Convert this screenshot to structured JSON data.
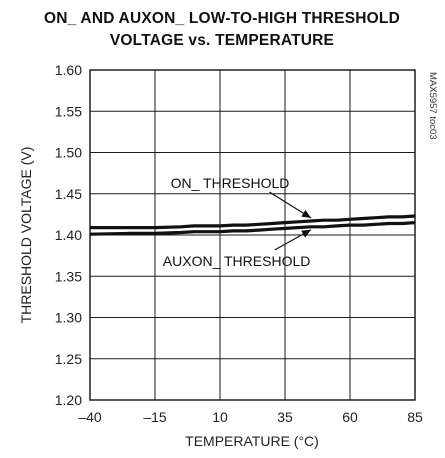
{
  "chart_data": {
    "type": "line",
    "title": [
      "ON_ AND AUXON_ LOW-TO-HIGH THRESHOLD",
      "VOLTAGE vs. TEMPERATURE"
    ],
    "xlabel": "TEMPERATURE (°C)",
    "ylabel": "THRESHOLD VOLTAGE (V)",
    "xlim": [
      -40,
      85
    ],
    "ylim": [
      1.2,
      1.6
    ],
    "xticks": [
      -40,
      -15,
      10,
      35,
      60,
      85
    ],
    "xtick_labels": [
      "-40",
      "-15",
      "10",
      "35",
      "60",
      "85"
    ],
    "yticks": [
      1.2,
      1.25,
      1.3,
      1.35,
      1.4,
      1.45,
      1.5,
      1.55,
      1.6
    ],
    "ytick_labels": [
      "1.20",
      "1.25",
      "1.30",
      "1.35",
      "1.40",
      "1.45",
      "1.50",
      "1.55",
      "1.60"
    ],
    "grid": true,
    "series": [
      {
        "name": "ON_ THRESHOLD",
        "x": [
          -40,
          -25,
          -15,
          -5,
          0,
          10,
          15,
          20,
          25,
          30,
          35,
          40,
          45,
          50,
          55,
          60,
          65,
          70,
          75,
          80,
          85
        ],
        "y": [
          1.409,
          1.409,
          1.409,
          1.41,
          1.411,
          1.411,
          1.412,
          1.412,
          1.413,
          1.414,
          1.415,
          1.416,
          1.417,
          1.418,
          1.418,
          1.419,
          1.42,
          1.421,
          1.422,
          1.422,
          1.423
        ]
      },
      {
        "name": "AUXON_ THRESHOLD",
        "x": [
          -40,
          -25,
          -15,
          -5,
          0,
          10,
          15,
          20,
          25,
          30,
          35,
          40,
          45,
          50,
          55,
          60,
          65,
          70,
          75,
          80,
          85
        ],
        "y": [
          1.401,
          1.402,
          1.402,
          1.403,
          1.404,
          1.404,
          1.405,
          1.405,
          1.406,
          1.407,
          1.408,
          1.409,
          1.41,
          1.41,
          1.411,
          1.412,
          1.412,
          1.413,
          1.414,
          1.414,
          1.415
        ]
      }
    ],
    "annotations": [
      {
        "text": "ON_ THRESHOLD",
        "series": 0,
        "point_x": 45
      },
      {
        "text": "AUXON_ THRESHOLD",
        "series": 1,
        "point_x": 45
      }
    ],
    "tag": "MAX5957 toc03"
  }
}
